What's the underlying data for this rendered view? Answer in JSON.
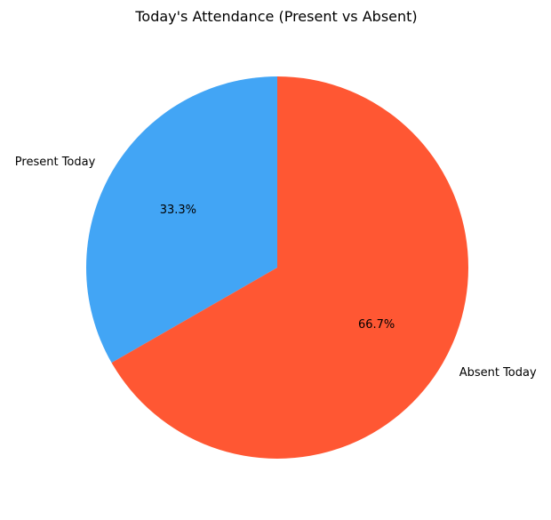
{
  "chart_data": {
    "type": "pie",
    "title": "Today's Attendance (Present vs Absent)",
    "slices": [
      {
        "label": "Present Today",
        "value": 33.3,
        "percent_label": "33.3%",
        "color": "#42A5F5"
      },
      {
        "label": "Absent Today",
        "value": 66.7,
        "percent_label": "66.7%",
        "color": "#FF5733"
      }
    ],
    "start_angle_deg": 90,
    "direction": "counterclockwise",
    "legend": "none"
  }
}
